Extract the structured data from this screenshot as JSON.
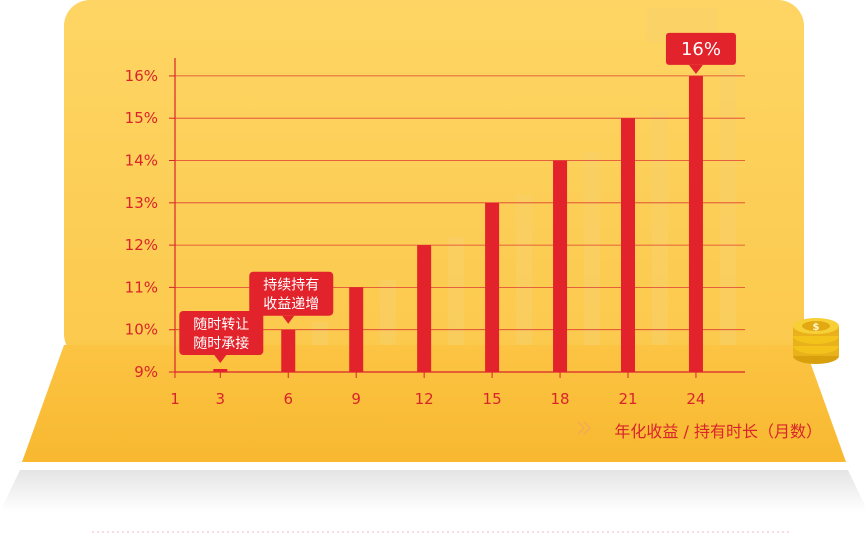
{
  "chart_data": {
    "type": "bar",
    "categories": [
      "3",
      "6",
      "9",
      "12",
      "15",
      "18",
      "21",
      "24"
    ],
    "x_ticks": [
      "1",
      "3",
      "6",
      "9",
      "12",
      "15",
      "18",
      "21",
      "24"
    ],
    "y_ticks": [
      "9%",
      "10%",
      "11%",
      "12%",
      "13%",
      "14%",
      "15%",
      "16%"
    ],
    "values": [
      9,
      10,
      11,
      12,
      13,
      14,
      15,
      16
    ],
    "ylim": [
      9,
      16
    ],
    "title": "",
    "xlabel": "年化收益 / 持有时长（月数）",
    "ylabel": "",
    "grid": true,
    "annotations": [
      {
        "category": "3",
        "text_lines": [
          "随时转让",
          "随时承接"
        ]
      },
      {
        "category": "6",
        "text_lines": [
          "持续持有",
          "收益递增"
        ]
      },
      {
        "category": "24",
        "text": "16%"
      }
    ]
  },
  "colors": {
    "bar": "#e3232b",
    "axis": "#d9242c",
    "panel": "#fdd25f",
    "panel_base": "#f9be3c",
    "coin": "#f3c21b"
  },
  "icons": [
    "coin-stack-icon"
  ]
}
